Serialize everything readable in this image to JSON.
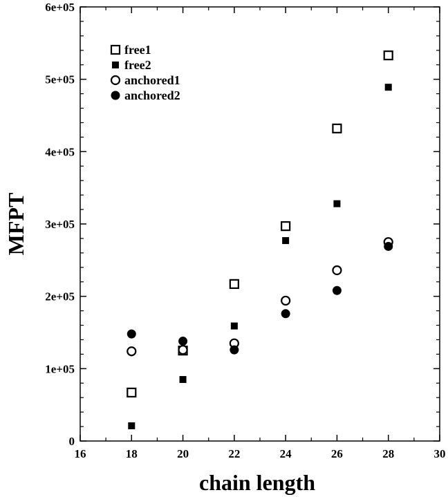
{
  "chart_data": {
    "type": "scatter",
    "title": "",
    "xlabel": "chain length",
    "ylabel": "MFPT",
    "xlim": [
      16,
      30
    ],
    "ylim": [
      0,
      600000
    ],
    "x_ticks": [
      16,
      18,
      20,
      22,
      24,
      26,
      28,
      30
    ],
    "x_tick_labels": [
      "16",
      "18",
      "20",
      "22",
      "24",
      "26",
      "28",
      "30"
    ],
    "y_ticks": [
      0,
      100000,
      200000,
      300000,
      400000,
      500000,
      600000
    ],
    "y_tick_labels": [
      "0",
      "1e+05",
      "2e+05",
      "3e+05",
      "4e+05",
      "5e+05",
      "6e+05"
    ],
    "grid": false,
    "legend_position": "top-left",
    "series": [
      {
        "name": "free1",
        "marker": "open-square",
        "x": [
          18,
          20,
          22,
          24,
          26,
          28
        ],
        "y": [
          67000,
          125000,
          217000,
          297000,
          432000,
          533000
        ]
      },
      {
        "name": "free2",
        "marker": "filled-square",
        "x": [
          18,
          20,
          22,
          24,
          26,
          28
        ],
        "y": [
          21000,
          85000,
          159000,
          277000,
          328000,
          489000
        ]
      },
      {
        "name": "anchored1",
        "marker": "open-circle",
        "x": [
          18,
          20,
          22,
          24,
          26,
          28
        ],
        "y": [
          124000,
          126000,
          135000,
          194000,
          236000,
          275000
        ]
      },
      {
        "name": "anchored2",
        "marker": "filled-circle",
        "x": [
          18,
          20,
          22,
          24,
          26,
          28
        ],
        "y": [
          148000,
          138000,
          126000,
          176000,
          208000,
          269000
        ]
      }
    ]
  }
}
